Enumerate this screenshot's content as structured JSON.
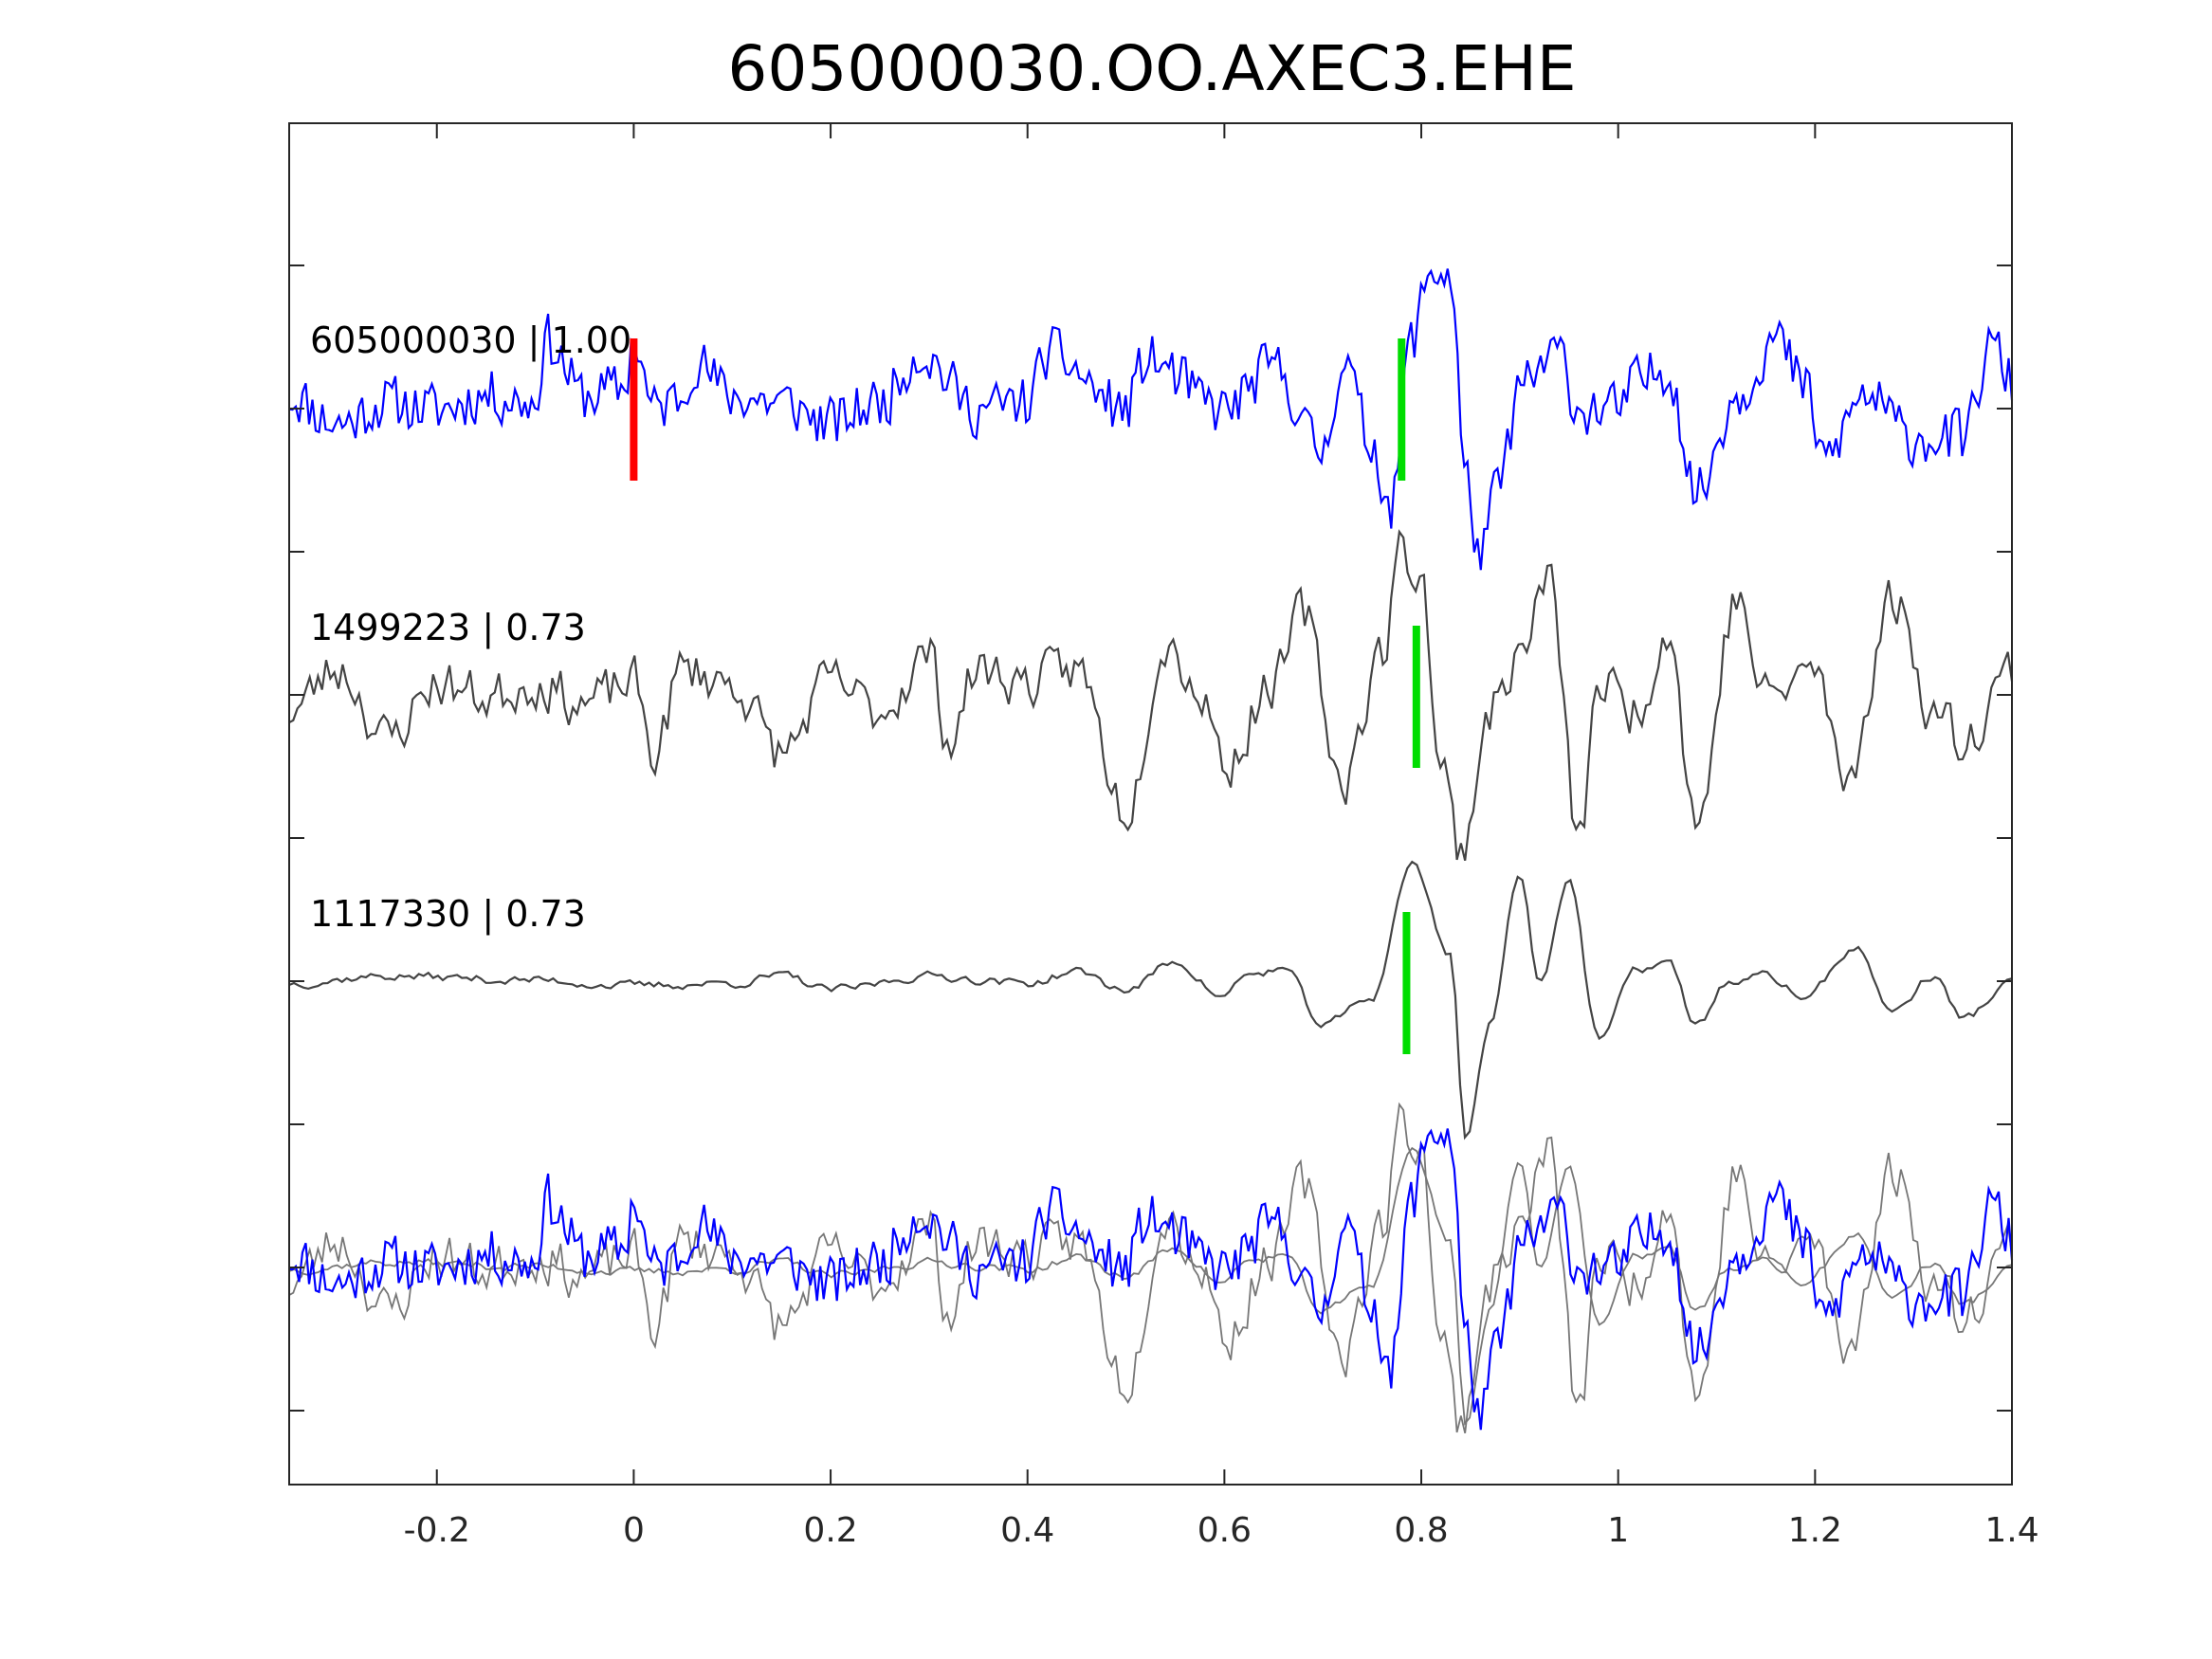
{
  "chart_data": {
    "type": "line",
    "title": "605000030.OO.AXEC3.EHE",
    "xlabel": "",
    "ylabel": "",
    "xlim": [
      -0.35,
      1.4
    ],
    "xticks": [
      -0.2,
      0,
      0.2,
      0.4,
      0.6,
      0.8,
      1,
      1.2,
      1.4
    ],
    "xtick_labels": [
      "-0.2",
      "0",
      "0.2",
      "0.4",
      "0.6",
      "0.8",
      "1",
      "1.2",
      "1.4"
    ],
    "yticks_count": 9,
    "grid": false,
    "traces": [
      {
        "label": "605000030 | 1.00",
        "color": "#0000ff",
        "picks": [
          {
            "time": 0.0,
            "color": "#ff0000"
          },
          {
            "time": 0.78,
            "color": "#00dd00"
          }
        ]
      },
      {
        "label": "1499223 | 0.73",
        "color": "#444444",
        "picks": [
          {
            "time": 0.795,
            "color": "#00dd00"
          }
        ]
      },
      {
        "label": "1117330 | 0.73",
        "color": "#444444",
        "picks": [
          {
            "time": 0.785,
            "color": "#00dd00"
          }
        ]
      }
    ],
    "overlay": {
      "colors": [
        "#0000ff",
        "#777777",
        "#777777"
      ]
    },
    "anchors": [
      [
        [
          -0.35,
          0.1
        ],
        [
          -0.3,
          -0.1
        ],
        [
          -0.25,
          0.05
        ],
        [
          -0.2,
          0.0
        ],
        [
          -0.15,
          0.1
        ],
        [
          -0.1,
          0.05
        ],
        [
          -0.09,
          0.5
        ],
        [
          -0.05,
          0.1
        ],
        [
          -0.01,
          0.15
        ],
        [
          0.0,
          0.5
        ],
        [
          0.02,
          0.0
        ],
        [
          0.05,
          0.1
        ],
        [
          0.06,
          0.35
        ],
        [
          0.1,
          0.1
        ],
        [
          0.15,
          0.05
        ],
        [
          0.2,
          -0.1
        ],
        [
          0.25,
          0.05
        ],
        [
          0.29,
          0.4
        ],
        [
          0.35,
          0.0
        ],
        [
          0.4,
          0.05
        ],
        [
          0.42,
          0.4
        ],
        [
          0.5,
          0.0
        ],
        [
          0.52,
          0.35
        ],
        [
          0.6,
          0.0
        ],
        [
          0.65,
          0.3
        ],
        [
          0.7,
          -0.3
        ],
        [
          0.72,
          0.35
        ],
        [
          0.75,
          -0.25
        ],
        [
          0.77,
          -0.7
        ],
        [
          0.79,
          0.5
        ],
        [
          0.81,
          1.0
        ],
        [
          0.83,
          0.95
        ],
        [
          0.845,
          -0.5
        ],
        [
          0.86,
          -1.05
        ],
        [
          0.88,
          -0.5
        ],
        [
          0.9,
          0.15
        ],
        [
          0.94,
          0.4
        ],
        [
          0.96,
          0.0
        ],
        [
          1.0,
          0.0
        ],
        [
          1.02,
          0.2
        ],
        [
          1.05,
          0.3
        ],
        [
          1.08,
          -0.6
        ],
        [
          1.12,
          0.1
        ],
        [
          1.16,
          0.5
        ],
        [
          1.19,
          0.15
        ],
        [
          1.21,
          -0.35
        ],
        [
          1.25,
          0.1
        ],
        [
          1.3,
          -0.2
        ],
        [
          1.35,
          -0.2
        ],
        [
          1.38,
          0.45
        ],
        [
          1.4,
          0.2
        ]
      ],
      [
        [
          -0.35,
          -0.1
        ],
        [
          -0.3,
          0.2
        ],
        [
          -0.25,
          -0.3
        ],
        [
          -0.2,
          0.1
        ],
        [
          -0.15,
          0.0
        ],
        [
          -0.1,
          0.1
        ],
        [
          -0.05,
          -0.05
        ],
        [
          0.0,
          0.1
        ],
        [
          0.02,
          -0.4
        ],
        [
          0.05,
          0.2
        ],
        [
          0.1,
          0.1
        ],
        [
          0.15,
          -0.4
        ],
        [
          0.2,
          0.1
        ],
        [
          0.25,
          -0.1
        ],
        [
          0.3,
          0.3
        ],
        [
          0.32,
          -0.3
        ],
        [
          0.35,
          0.2
        ],
        [
          0.4,
          0.1
        ],
        [
          0.45,
          0.2
        ],
        [
          0.5,
          -0.8
        ],
        [
          0.54,
          0.4
        ],
        [
          0.58,
          0.0
        ],
        [
          0.6,
          -0.5
        ],
        [
          0.65,
          0.1
        ],
        [
          0.68,
          0.6
        ],
        [
          0.72,
          -0.6
        ],
        [
          0.76,
          0.3
        ],
        [
          0.78,
          1.05
        ],
        [
          0.8,
          0.85
        ],
        [
          0.82,
          -0.5
        ],
        [
          0.84,
          -1.1
        ],
        [
          0.87,
          -0.1
        ],
        [
          0.9,
          0.3
        ],
        [
          0.93,
          0.85
        ],
        [
          0.96,
          -1.05
        ],
        [
          0.98,
          0.1
        ],
        [
          1.02,
          -0.1
        ],
        [
          1.05,
          0.5
        ],
        [
          1.08,
          -0.9
        ],
        [
          1.12,
          0.7
        ],
        [
          1.15,
          0.0
        ],
        [
          1.2,
          0.2
        ],
        [
          1.23,
          -0.6
        ],
        [
          1.28,
          0.7
        ],
        [
          1.32,
          -0.1
        ],
        [
          1.35,
          -0.3
        ],
        [
          1.4,
          0.2
        ]
      ],
      [
        [
          -0.35,
          0.0
        ],
        [
          -0.25,
          0.05
        ],
        [
          -0.1,
          0.02
        ],
        [
          0.0,
          -0.02
        ],
        [
          0.1,
          0.0
        ],
        [
          0.15,
          0.05
        ],
        [
          0.2,
          -0.05
        ],
        [
          0.3,
          0.05
        ],
        [
          0.4,
          0.0
        ],
        [
          0.45,
          0.08
        ],
        [
          0.5,
          -0.05
        ],
        [
          0.55,
          0.15
        ],
        [
          0.6,
          -0.1
        ],
        [
          0.62,
          0.05
        ],
        [
          0.66,
          0.1
        ],
        [
          0.7,
          -0.3
        ],
        [
          0.75,
          -0.1
        ],
        [
          0.79,
          0.85
        ],
        [
          0.83,
          0.2
        ],
        [
          0.845,
          -1.1
        ],
        [
          0.87,
          -0.3
        ],
        [
          0.9,
          0.8
        ],
        [
          0.92,
          0.0
        ],
        [
          0.95,
          0.75
        ],
        [
          0.98,
          -0.4
        ],
        [
          1.02,
          0.1
        ],
        [
          1.05,
          0.15
        ],
        [
          1.08,
          -0.3
        ],
        [
          1.11,
          0.0
        ],
        [
          1.15,
          0.05
        ],
        [
          1.19,
          -0.1
        ],
        [
          1.24,
          0.25
        ],
        [
          1.28,
          -0.2
        ],
        [
          1.32,
          0.05
        ],
        [
          1.35,
          -0.25
        ],
        [
          1.4,
          0.0
        ]
      ]
    ]
  }
}
